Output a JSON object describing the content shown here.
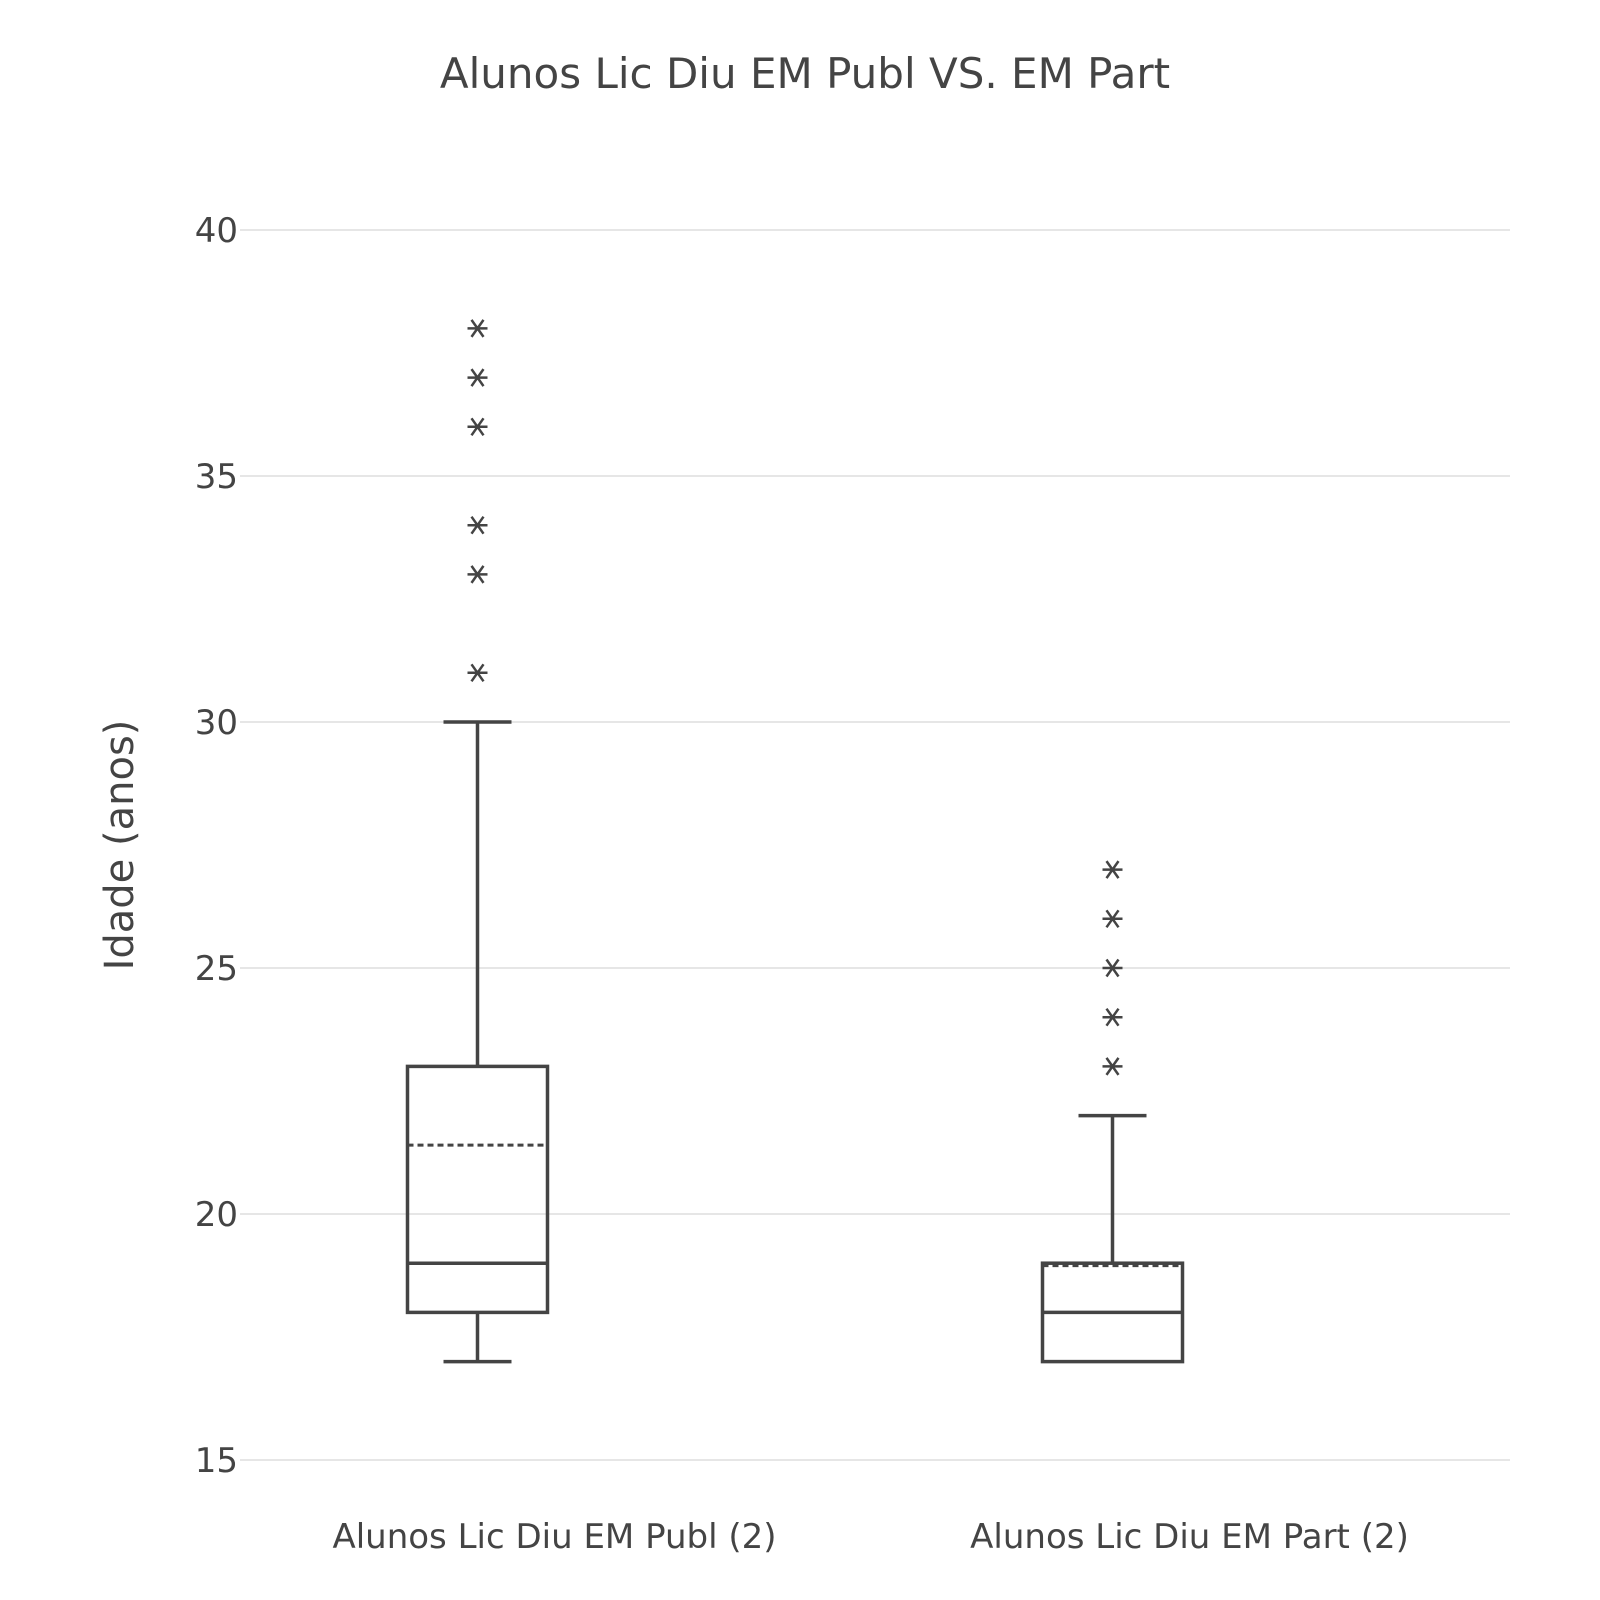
{
  "chart_data": {
    "type": "box",
    "title": "Alunos Lic Diu EM Publ VS. EM Part",
    "xlabel": "",
    "ylabel": "Idade (anos)",
    "ylim": [
      15,
      40
    ],
    "yticks": [
      15,
      20,
      25,
      30,
      35,
      40
    ],
    "grid": true,
    "series": [
      {
        "category": "Alunos Lic Diu EM Publ (2)",
        "min": 17,
        "q1": 18,
        "median": 19,
        "q3": 23,
        "max": 30,
        "mean": 21.4,
        "outliers": [
          31,
          33,
          34,
          36,
          37,
          38
        ]
      },
      {
        "category": "Alunos Lic Diu EM Part (2)",
        "min": 17,
        "q1": 17,
        "median": 18,
        "q3": 19,
        "max": 22,
        "mean": 18.95,
        "outliers": [
          23,
          24,
          25,
          26,
          27
        ]
      }
    ]
  }
}
